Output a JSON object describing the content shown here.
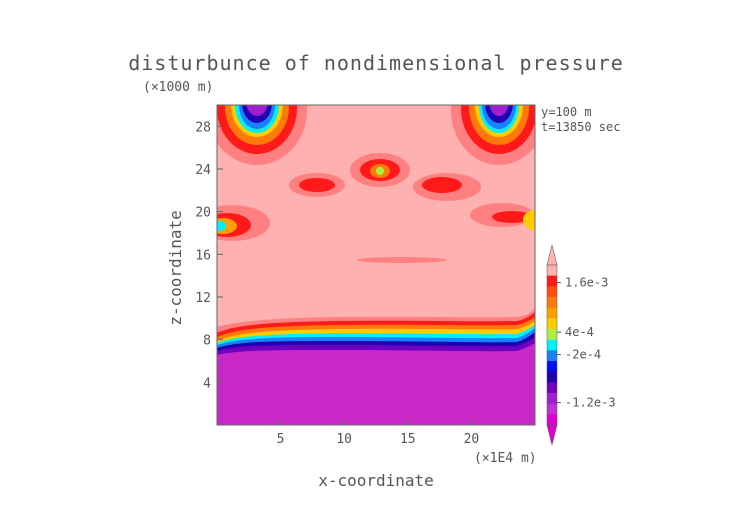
{
  "chart_data": {
    "type": "heatmap",
    "title": "disturbunce of nondimensional pressure",
    "xlabel": "x-coordinate",
    "ylabel": "z-coordinate",
    "x_unit": "(×1E4 m)",
    "y_unit": "(×1000 m)",
    "annotations": [
      "y=100 m",
      "t=13850 sec"
    ],
    "xlim": [
      0,
      25
    ],
    "ylim": [
      0,
      30
    ],
    "x_ticks": [
      "5",
      "10",
      "15",
      "20"
    ],
    "x_tick_values": [
      5,
      10,
      15,
      20
    ],
    "y_ticks": [
      "4",
      "8",
      "12",
      "16",
      "20",
      "24",
      "28"
    ],
    "y_tick_values": [
      4,
      8,
      12,
      16,
      20,
      24,
      28
    ],
    "colorbar": {
      "labels": [
        "1.6e-3",
        "4e-4",
        "-2e-4",
        "-1.2e-3"
      ],
      "label_values": [
        0.0016,
        0.0004,
        -0.0002,
        -0.0012
      ],
      "colors": [
        "#ffb0b0",
        "#ff1a1a",
        "#ff4a10",
        "#ff7a0a",
        "#ffa000",
        "#ffcc00",
        "#aaf040",
        "#00f0ff",
        "#1a80ff",
        "#0010f0",
        "#2000b0",
        "#7000c0",
        "#a020d0",
        "#c030d0",
        "#e000d0"
      ],
      "min_label_index": 14,
      "max_label_index": 0
    },
    "description_levels": {
      "ground_layer": {
        "z_range": [
          0,
          7
        ],
        "value": "< -1.2e-3"
      },
      "transition_band": {
        "z_range": [
          7,
          10
        ],
        "value": "-1.2e-3 to 1.6e-3"
      },
      "upper_region": {
        "z_range": [
          10,
          30
        ],
        "value": "> 1.6e-3"
      }
    }
  }
}
